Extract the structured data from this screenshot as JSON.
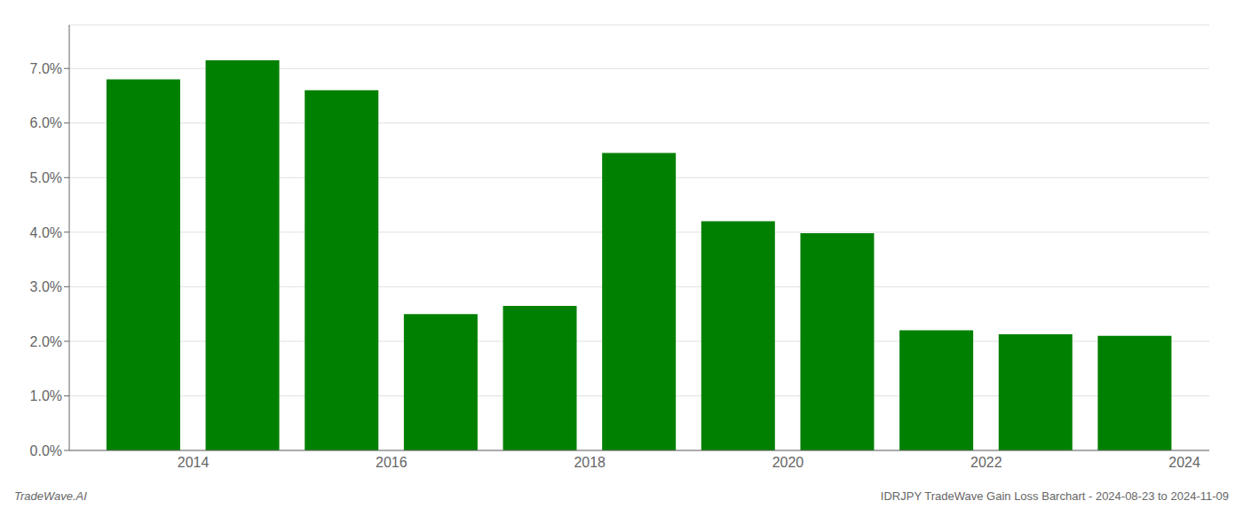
{
  "chart_data": {
    "type": "bar",
    "title": "IDRJPY TradeWave Gain Loss Barchart - 2024-08-23 to 2024-11-09",
    "annotations": [
      "TradeWave.AI"
    ],
    "x": [
      2013,
      2014,
      2015,
      2016,
      2017,
      2018,
      2019,
      2020,
      2021,
      2022,
      2023
    ],
    "values": [
      0.068,
      0.0715,
      0.066,
      0.025,
      0.0265,
      0.0545,
      0.042,
      0.0398,
      0.022,
      0.0213,
      0.021
    ],
    "color": "#008000",
    "xlim": [
      2012.25,
      2023.75
    ],
    "xticks": [
      {
        "value": 2013.5,
        "label": "2014"
      },
      {
        "value": 2015.5,
        "label": "2016"
      },
      {
        "value": 2017.5,
        "label": "2018"
      },
      {
        "value": 2019.5,
        "label": "2020"
      },
      {
        "value": 2021.5,
        "label": "2022"
      },
      {
        "value": 2023.5,
        "label": "2024"
      }
    ],
    "ylim": [
      0.0,
      0.078
    ],
    "yticks": [
      {
        "value": 0.0,
        "label": "0.0%"
      },
      {
        "value": 0.01,
        "label": "1.0%"
      },
      {
        "value": 0.02,
        "label": "2.0%"
      },
      {
        "value": 0.03,
        "label": "3.0%"
      },
      {
        "value": 0.04,
        "label": "4.0%"
      },
      {
        "value": 0.05,
        "label": "5.0%"
      },
      {
        "value": 0.06,
        "label": "6.0%"
      },
      {
        "value": 0.07,
        "label": "7.0%"
      }
    ],
    "grid": true
  }
}
